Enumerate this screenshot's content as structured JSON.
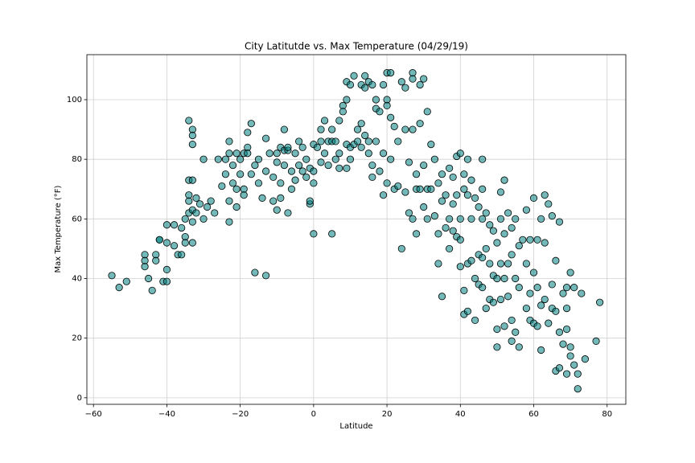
{
  "chart_data": {
    "type": "scatter",
    "title": "City Latitutde vs. Max Temperature (04/29/19)",
    "x_label": "Latitude",
    "y_label": "Max Temperature (°F)",
    "color": "#008080",
    "grid": true,
    "xlim": [
      -61.8,
      85.1
    ],
    "ylim": [
      -2.2,
      115.1
    ],
    "xticks": [
      {
        "value": -60,
        "label": "−60"
      },
      {
        "value": -40,
        "label": "−40"
      },
      {
        "value": -20,
        "label": "−20"
      },
      0,
      20,
      40,
      60,
      80
    ],
    "yticks": [
      0,
      20,
      40,
      60,
      80,
      100
    ],
    "x": [
      -55,
      -53,
      -51,
      -46,
      -46,
      -46,
      -45,
      -44,
      -43,
      -43,
      -42,
      -42,
      -41,
      -40,
      -40,
      -40,
      -40,
      -38,
      -38,
      -37,
      -36,
      -36,
      -35,
      -35,
      -35,
      -34,
      -34,
      -34,
      -34,
      -34,
      -33,
      -33,
      -33,
      -33,
      -33,
      -33,
      -33,
      -32,
      -32,
      -31,
      -30,
      -30,
      -29,
      -28,
      -27,
      -26,
      -25,
      -24,
      -24,
      -23,
      -23,
      -23,
      -23,
      -22,
      -22,
      -21,
      -21,
      -21,
      -20,
      -20,
      -19,
      -19,
      -19,
      -18,
      -18,
      -18,
      -17,
      -17,
      -16,
      -16,
      -15,
      -15,
      -14,
      -13,
      -13,
      -13,
      -12,
      -11,
      -11,
      -10,
      -10,
      -10,
      -9,
      -9,
      -9,
      -8,
      -8,
      -8,
      -7,
      -7,
      -7,
      -6,
      -6,
      -5,
      -5,
      -4,
      -4,
      -3,
      -3,
      -2,
      -2,
      -1,
      -1,
      -1,
      0,
      0,
      0,
      0,
      1,
      2,
      2,
      2,
      3,
      3,
      4,
      4,
      5,
      5,
      5,
      6,
      6,
      7,
      7,
      7,
      8,
      8,
      9,
      9,
      9,
      9,
      10,
      10,
      10,
      11,
      11,
      12,
      12,
      13,
      13,
      13,
      14,
      14,
      14,
      15,
      15,
      15,
      16,
      16,
      16,
      17,
      17,
      17,
      18,
      18,
      19,
      19,
      19,
      20,
      20,
      20,
      20,
      21,
      21,
      21,
      22,
      22,
      23,
      23,
      24,
      24,
      25,
      25,
      25,
      26,
      26,
      27,
      27,
      27,
      27,
      28,
      28,
      28,
      29,
      29,
      29,
      30,
      30,
      30,
      31,
      31,
      31,
      32,
      32,
      33,
      33,
      34,
      34,
      34,
      35,
      35,
      35,
      36,
      36,
      37,
      37,
      37,
      38,
      38,
      38,
      39,
      39,
      39,
      40,
      40,
      40,
      40,
      41,
      41,
      41,
      41,
      42,
      42,
      42,
      42,
      43,
      43,
      43,
      44,
      44,
      44,
      45,
      45,
      45,
      46,
      46,
      46,
      46,
      46,
      47,
      47,
      47,
      48,
      48,
      48,
      49,
      49,
      49,
      50,
      50,
      50,
      50,
      51,
      51,
      51,
      51,
      52,
      52,
      52,
      52,
      53,
      53,
      53,
      54,
      54,
      54,
      54,
      55,
      55,
      55,
      56,
      56,
      56,
      57,
      58,
      58,
      58,
      59,
      59,
      59,
      60,
      60,
      60,
      61,
      61,
      61,
      62,
      62,
      62,
      63,
      63,
      63,
      64,
      64,
      65,
      65,
      65,
      66,
      66,
      66,
      67,
      67,
      67,
      68,
      68,
      69,
      69,
      69,
      69,
      70,
      70,
      70,
      71,
      71,
      72,
      72,
      73,
      74,
      77,
      78
    ],
    "values": [
      41,
      37,
      39,
      48,
      46,
      44,
      40,
      36,
      48,
      46,
      53,
      53,
      39,
      39,
      43,
      52,
      58,
      51,
      58,
      48,
      48,
      57,
      54,
      52,
      60,
      62,
      66,
      68,
      73,
      93,
      90,
      85,
      88,
      73,
      63,
      59,
      52,
      62,
      67,
      65,
      80,
      60,
      64,
      66,
      62,
      80,
      71,
      80,
      75,
      59,
      66,
      86,
      82,
      72,
      78,
      64,
      70,
      82,
      75,
      80,
      70,
      82,
      68,
      84,
      82,
      89,
      92,
      75,
      78,
      42,
      80,
      72,
      67,
      41,
      76,
      87,
      82,
      74,
      66,
      79,
      63,
      82,
      84,
      72,
      67,
      83,
      78,
      90,
      83,
      84,
      62,
      76,
      70,
      73,
      82,
      86,
      78,
      84,
      76,
      80,
      74,
      65,
      66,
      77,
      76,
      85,
      55,
      72,
      84,
      86,
      90,
      79,
      82,
      93,
      86,
      78,
      86,
      90,
      55,
      86,
      80,
      82,
      93,
      77,
      98,
      96,
      85,
      100,
      77,
      106,
      84,
      105,
      80,
      108,
      85,
      86,
      90,
      105,
      92,
      84,
      108,
      104,
      88,
      82,
      106,
      86,
      78,
      105,
      74,
      97,
      100,
      86,
      96,
      76,
      105,
      82,
      68,
      109,
      100,
      98,
      72,
      94,
      109,
      80,
      91,
      70,
      86,
      71,
      50,
      106,
      104,
      90,
      69,
      79,
      62,
      109,
      107,
      90,
      60,
      75,
      70,
      55,
      105,
      92,
      70,
      107,
      78,
      64,
      96,
      70,
      60,
      85,
      70,
      80,
      61,
      72,
      55,
      45,
      66,
      34,
      75,
      57,
      68,
      50,
      60,
      77,
      56,
      74,
      65,
      54,
      81,
      68,
      82,
      60,
      53,
      44,
      75,
      70,
      36,
      28,
      80,
      68,
      45,
      29,
      73,
      46,
      60,
      67,
      40,
      26,
      64,
      48,
      38,
      80,
      70,
      60,
      47,
      37,
      62,
      50,
      30,
      58,
      45,
      33,
      56,
      41,
      32,
      52,
      40,
      23,
      17,
      69,
      60,
      45,
      33,
      73,
      55,
      40,
      24,
      62,
      45,
      34,
      57,
      48,
      26,
      19,
      60,
      40,
      22,
      51,
      37,
      17,
      53,
      63,
      45,
      30,
      53,
      35,
      26,
      67,
      42,
      25,
      53,
      37,
      24,
      60,
      31,
      16,
      68,
      52,
      33,
      65,
      25,
      61,
      38,
      30,
      46,
      29,
      9,
      59,
      22,
      10,
      18,
      35,
      37,
      30,
      8,
      23,
      42,
      14,
      17,
      37,
      11,
      8,
      3,
      35,
      13,
      19,
      32
    ]
  }
}
